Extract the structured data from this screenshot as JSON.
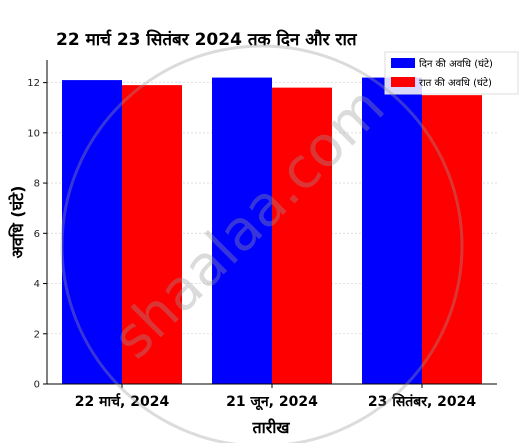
{
  "chart_data": {
    "type": "bar",
    "title": "22 मार्च 23 सितंबर 2024 तक दिन और रात",
    "xlabel": "तारीख",
    "ylabel": "अवधि (घंटे)",
    "categories": [
      "22 मार्च, 2024",
      "21 जून, 2024",
      "23 सितंबर, 2024"
    ],
    "series": [
      {
        "name": "दिन की अवधि (घंटे)",
        "color": "#0000ff",
        "values": [
          12.1,
          12.2,
          12.2
        ]
      },
      {
        "name": "रात की अवधि (घंटे)",
        "color": "#ff0000",
        "values": [
          11.9,
          11.8,
          11.5
        ]
      }
    ],
    "ylim": [
      0,
      12.9
    ],
    "yticks": [
      0,
      2,
      4,
      6,
      8,
      10,
      12
    ],
    "grid": true,
    "legend_position": "top-right"
  },
  "watermark": "shaalaa.com"
}
